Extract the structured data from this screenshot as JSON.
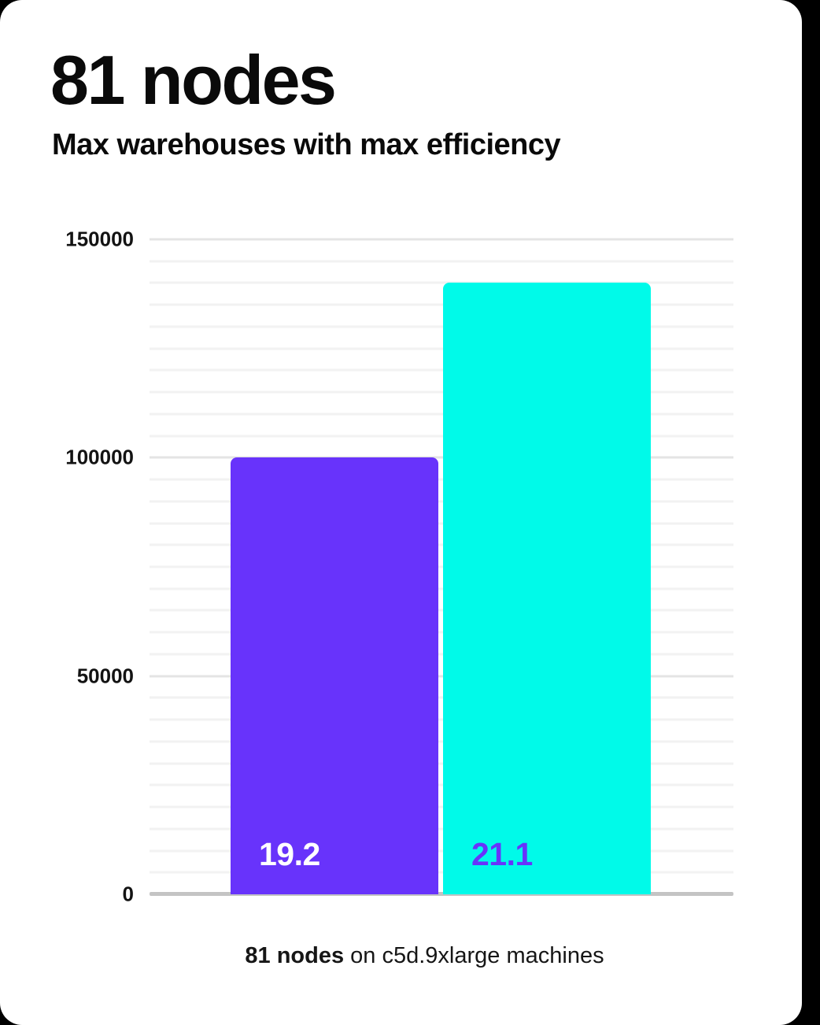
{
  "headline": "81 nodes",
  "subtitle": "Max warehouses with max efficiency",
  "caption": {
    "bold": "81 nodes",
    "rest": " on c5d.9xlarge machines"
  },
  "colors": {
    "card_bg": "#ffffff",
    "page_bg": "#000000",
    "text": "#0a0a0a",
    "grid_minor": "#f2f2f2",
    "grid_major": "#e4e4e4",
    "axis": "#c4c4c4",
    "accent_purple": "#6833fb",
    "accent_cyan": "#00fae9"
  },
  "chart_data": {
    "type": "bar",
    "title": "81 nodes",
    "subtitle": "Max warehouses with max efficiency",
    "xlabel": "",
    "ylabel": "",
    "categories": [
      "19.2",
      "21.1"
    ],
    "values": [
      100000,
      140000
    ],
    "bar_labels": [
      "19.2",
      "21.1"
    ],
    "bar_colors": [
      "#6833fb",
      "#00fae9"
    ],
    "bar_label_colors": [
      "#ffffff",
      "#6833fb"
    ],
    "ylim": [
      0,
      150000
    ],
    "yticks": [
      0,
      50000,
      100000,
      150000
    ],
    "minor_grid_step": 5000,
    "major_grid_step": 50000,
    "grid": true,
    "legend": false,
    "note": "81 nodes on c5d.9xlarge machines"
  }
}
